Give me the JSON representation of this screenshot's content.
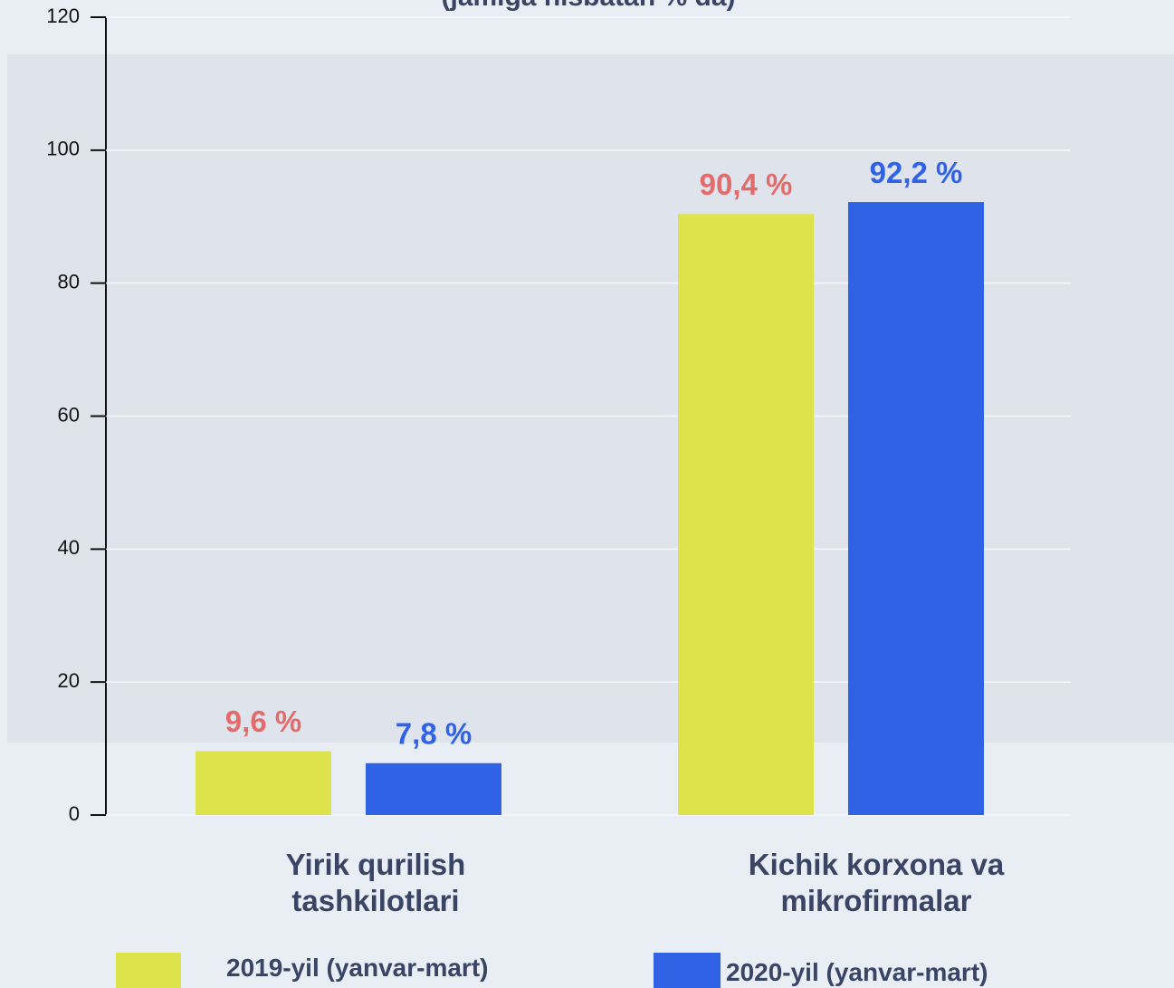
{
  "chart_data": {
    "type": "bar",
    "subtitle": "(jamiga nisbatan % da)",
    "categories": [
      "Yirik qurilish tashkilotlari",
      "Kichik korxona va mikrofirmalar"
    ],
    "series": [
      {
        "name": "2019-yil (yanvar-mart)",
        "color": "#dde34a",
        "label_color": "#e26b6b",
        "values": [
          9.6,
          90.4
        ],
        "value_labels": [
          "9,6 %",
          "90,4 %"
        ]
      },
      {
        "name": "2020-yil (yanvar-mart)",
        "color": "#2f62e4",
        "label_color": "#2f62e4",
        "values": [
          7.8,
          92.2
        ],
        "value_labels": [
          "7,8 %",
          "92,2 %"
        ]
      }
    ],
    "ylim": [
      0,
      120
    ],
    "yticks": [
      0,
      20,
      40,
      60,
      80,
      100,
      120
    ],
    "grid": true
  }
}
